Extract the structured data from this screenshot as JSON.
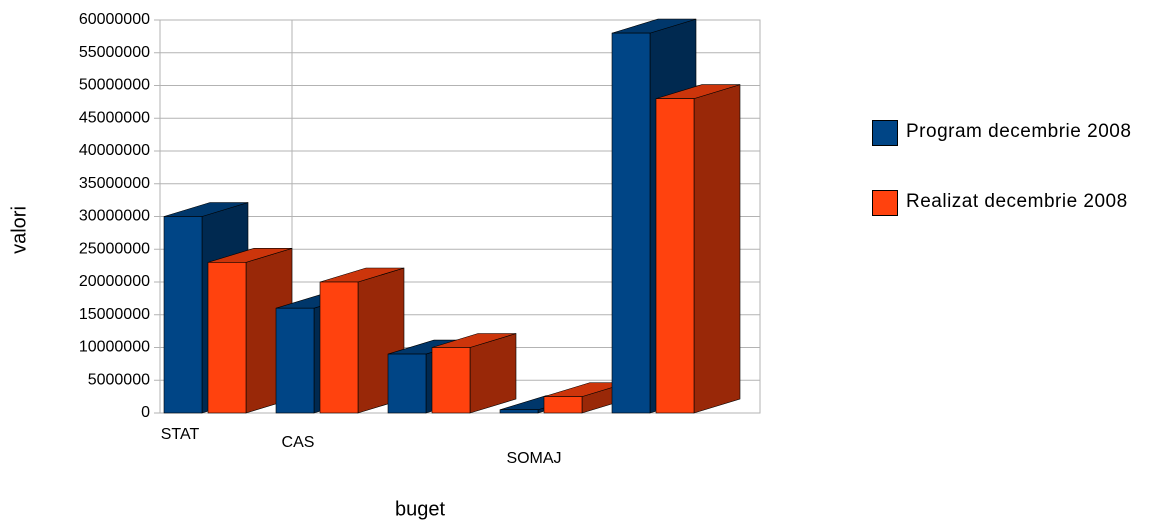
{
  "chart_data": {
    "type": "bar3d",
    "categories": [
      "STAT",
      "CAS",
      null,
      "SOMAJ",
      null
    ],
    "series": [
      {
        "name": "Program decembrie 2008",
        "color": "#004586",
        "values": [
          30000000,
          16000000,
          9000000,
          500000,
          58000000
        ]
      },
      {
        "name": "Realizat decembrie 2008",
        "color": "#ff420e",
        "values": [
          23000000,
          20000000,
          10000000,
          2500000,
          48000000
        ]
      }
    ],
    "ylim": [
      0,
      60000000
    ],
    "yticks": [
      0,
      5000000,
      10000000,
      15000000,
      20000000,
      25000000,
      30000000,
      35000000,
      40000000,
      45000000,
      50000000,
      55000000,
      60000000
    ],
    "xlabel": "buget",
    "ylabel": "valori",
    "grid": true,
    "legend": "right"
  }
}
